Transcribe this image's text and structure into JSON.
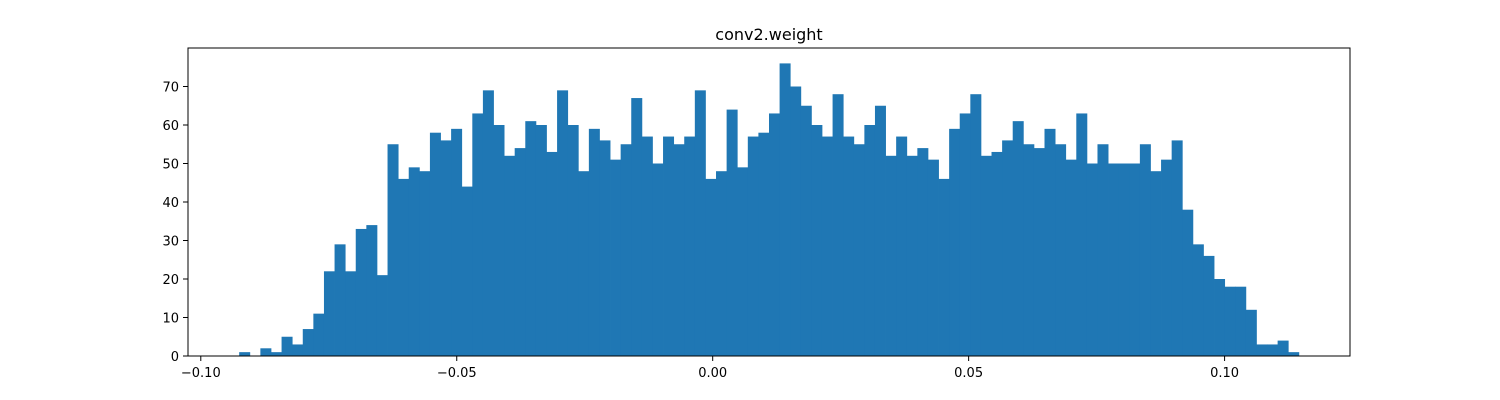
{
  "chart_data": {
    "type": "bar",
    "title": "conv2.weight",
    "xlabel": "",
    "ylabel": "",
    "xlim": [
      -0.1025,
      0.1245
    ],
    "ylim": [
      0,
      80
    ],
    "grid": false,
    "bar_color": "#1f77b4",
    "bin_start": -0.0925,
    "bin_width": 0.00207,
    "values": [
      1,
      0,
      2,
      1,
      5,
      3,
      7,
      11,
      22,
      29,
      22,
      33,
      34,
      21,
      55,
      46,
      49,
      48,
      58,
      56,
      59,
      44,
      63,
      69,
      60,
      52,
      54,
      61,
      60,
      53,
      69,
      60,
      48,
      59,
      56,
      51,
      55,
      67,
      57,
      50,
      57,
      55,
      57,
      69,
      46,
      48,
      64,
      49,
      57,
      58,
      63,
      76,
      70,
      65,
      60,
      57,
      68,
      57,
      55,
      60,
      65,
      52,
      57,
      52,
      54,
      51,
      46,
      59,
      63,
      68,
      52,
      53,
      56,
      61,
      55,
      54,
      59,
      55,
      51,
      63,
      50,
      55,
      50,
      50,
      50,
      55,
      48,
      51,
      56,
      38,
      29,
      26,
      20,
      18,
      18,
      12,
      3,
      3,
      4,
      1
    ],
    "x_ticks": [
      -0.1,
      -0.05,
      0.0,
      0.05,
      0.1
    ],
    "x_tick_labels": [
      "−0.10",
      "−0.05",
      "0.00",
      "0.05",
      "0.10"
    ],
    "y_ticks": [
      0,
      10,
      20,
      30,
      40,
      50,
      60,
      70
    ],
    "y_tick_labels": [
      "0",
      "10",
      "20",
      "30",
      "40",
      "50",
      "60",
      "70"
    ]
  }
}
